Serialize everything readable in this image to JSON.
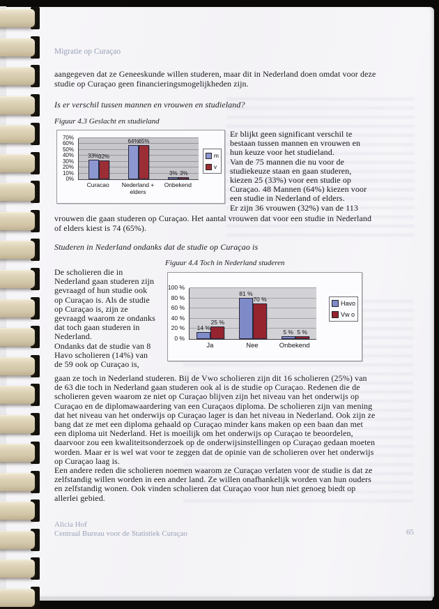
{
  "page": {
    "header": "Migratie op Curaçao",
    "footer": {
      "author": "Alicia Hof",
      "organization": "Centraal Bureau voor de Statistiek Curaçao",
      "page_number": "65"
    }
  },
  "content": {
    "para_intro": "aangegeven dat ze Geneeskunde willen studeren, maar dit in Nederland doen omdat voor deze\nstudie op Curaçao geen financieringsmogelijkheden zijn.",
    "question_gender": "Is er verschil tussen mannen en vrouwen en studieland?",
    "fig43_side_text": "Er blijkt geen significant verschil te\nbestaan tussen mannen en vrouwen en\nhun keuze voor het studieland.\nVan de 75 mannen die nu voor de\nstudiekeuze staan en gaan studeren,\nkiezen 25 (33%) voor een studie op\nCuraçao. 48 Mannen (64%) kiezen voor\neen studie in Nederland of elders.\nEr zijn 36 vrouwen (32%) van de 113",
    "para_vrouwen": "vrouwen die gaan studeren op Curaçao. Het aantal vrouwen dat voor een studie in Nederland\nof elders kiest is 74 (65%).",
    "heading_studeren": "Studeren in Nederland ondanks dat de studie op Curaçao is",
    "fig44_side_text": "De scholieren die in\nNederland gaan studeren zijn\ngevraagd of hun studie ook\nop Curaçao is. Als de studie\nop Curaçao is, zijn ze\ngevraagd waarom ze ondanks\ndat toch gaan studeren in\nNederland.\nOndanks dat de studie van 8\nHavo scholieren (14%) van\nde 59 ook op Curaçao is,",
    "para_redenen": "gaan ze toch in Nederland studeren. Bij de Vwo scholieren zijn dit 16 scholieren (25%) van\nde 63 die toch in Nederland gaan studeren ook al is de studie op Curaçao. Redenen die de\nscholieren geven waarom ze niet op Curaçao blijven zijn het niveau van het onderwijs op\nCuraçao en de diplomawaardering van een Curaçaos diploma. De scholieren zijn van mening\ndat het niveau van het onderwijs op Curaçao lager is dan het niveau in Nederland. Ook zijn ze\nbang dat ze met een diploma gehaald op Curaçao minder kans maken op een baan dan met\neen diploma uit Nederland. Het is moeilijk om het onderwijs op Curaçao te beoordelen,\ndaarvoor zou een kwaliteitsonderzoek op de onderwijsinstellingen op Curaçao gedaan moeten\nworden. Maar er is wel wat voor te zeggen dat de opinie van de scholieren over het onderwijs\nop Curaçao laag is.\nEen andere reden die scholieren noemen waarom ze Curaçao verlaten voor de studie is dat ze\nzelfstandig willen worden in een ander land. Ze willen onafhankelijk worden van hun ouders\nen zelfstandig wonen. Ook vinden scholieren dat Curaçao voor hun niet genoeg biedt op\nallerlei gebied."
  },
  "chart_data": [
    {
      "type": "bar",
      "title": "Figuur 4.3 Geslacht en studieland",
      "categories": [
        "Curacao",
        "Nederland + elders",
        "Onbekend"
      ],
      "series": [
        {
          "name": "m",
          "color": "#8d97cf",
          "values": [
            33,
            64,
            3
          ]
        },
        {
          "name": "v",
          "color": "#9b2e35",
          "values": [
            32,
            65,
            3
          ]
        }
      ],
      "ylim": [
        0,
        70
      ],
      "ytick_step": 10,
      "tick_suffix": "%",
      "label_suffix": "%",
      "plot_bg": "#c7c6ca",
      "grid": true,
      "grid_color": "#96959b",
      "legend_position": "right",
      "xlabel": "",
      "ylabel": ""
    },
    {
      "type": "bar",
      "title": "Figuur 4.4 Toch in Nederland studeren",
      "categories": [
        "Ja",
        "Nee",
        "Onbekend"
      ],
      "series": [
        {
          "name": "Havo",
          "color": "#7f8ac9",
          "values": [
            14,
            81,
            5
          ]
        },
        {
          "name": "Vw o",
          "color": "#95242f",
          "values": [
            25,
            70,
            5
          ]
        }
      ],
      "ylim": [
        0,
        100
      ],
      "ytick_step": 20,
      "tick_suffix": " %",
      "label_suffix": " %",
      "plot_bg": "#d2d1d5",
      "grid": true,
      "grid_color": "#a2a1a7",
      "legend_position": "right",
      "xlabel": "",
      "ylabel": ""
    }
  ]
}
